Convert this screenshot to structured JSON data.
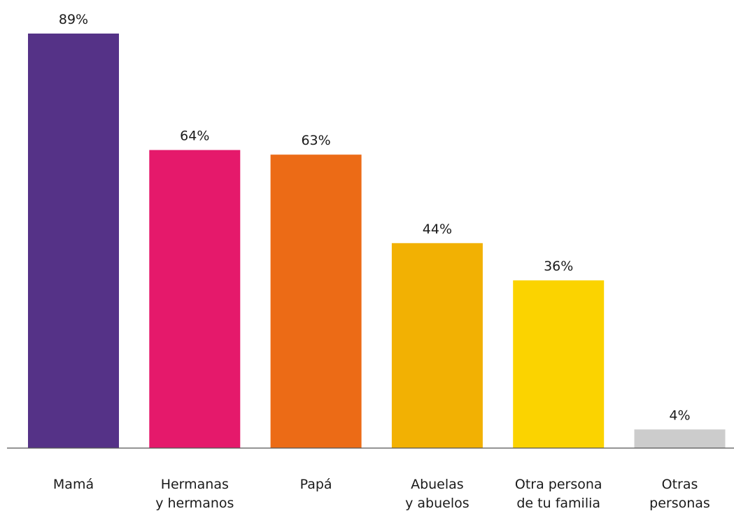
{
  "chart_data": {
    "type": "bar",
    "categories": [
      [
        "Mamá"
      ],
      [
        "Hermanas",
        "y hermanos"
      ],
      [
        "Papá"
      ],
      [
        "Abuelas",
        "y abuelos"
      ],
      [
        "Otra persona",
        "de tu familia"
      ],
      [
        "Otras",
        "personas"
      ]
    ],
    "values": [
      89,
      64,
      63,
      44,
      36,
      4
    ],
    "value_labels": [
      "89%",
      "64%",
      "63%",
      "44%",
      "36%",
      "4%"
    ],
    "colors": [
      "#553287",
      "#e5196b",
      "#ec6b16",
      "#f2b103",
      "#fbd300",
      "#cccccc"
    ],
    "title": "",
    "xlabel": "",
    "ylabel": "",
    "ylim": [
      0,
      89
    ],
    "grid": false
  }
}
